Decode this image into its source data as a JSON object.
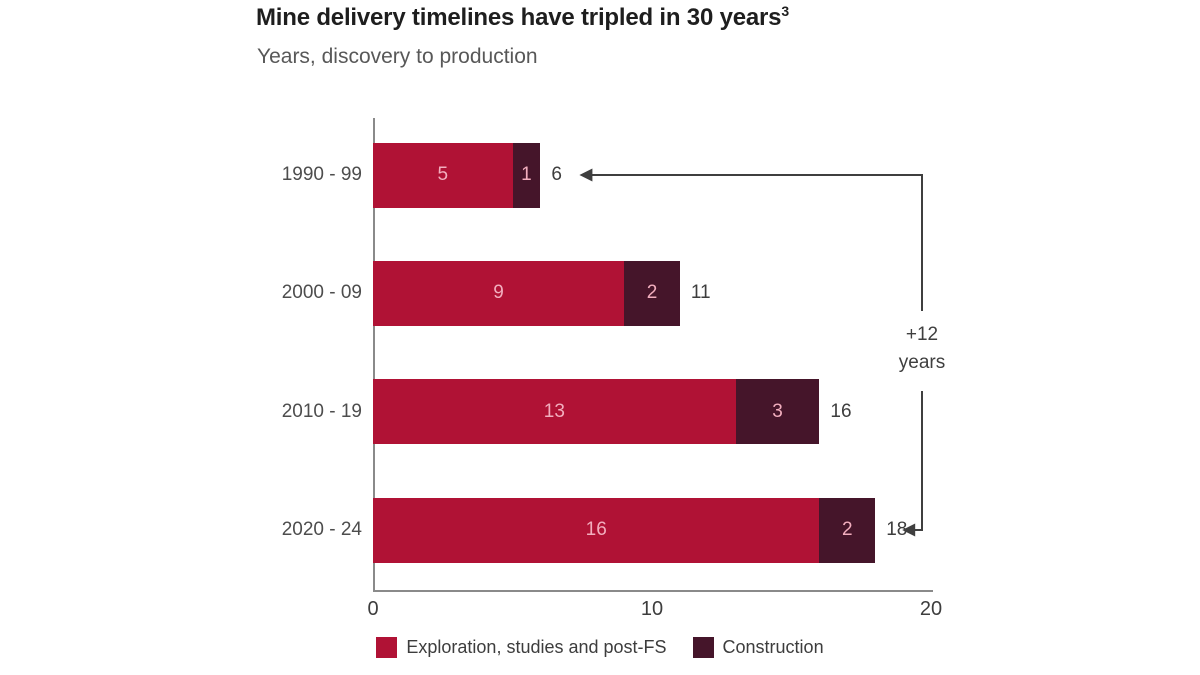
{
  "page": {
    "title": "Mine delivery timelines have tripled in 30 years",
    "title_superscript": "3",
    "subtitle": "Years, discovery to production"
  },
  "colors": {
    "exploration": "#b01235",
    "construction": "#45152a",
    "bar_value_label": "#f2aebe",
    "annotation": "#3f3f3f",
    "axis": "#8a8a8a"
  },
  "chart_data": {
    "type": "bar",
    "orientation": "horizontal",
    "stacked": true,
    "title": "Mine delivery timelines have tripled in 30 years",
    "subtitle": "Years, discovery to production",
    "categories": [
      "1990 - 99",
      "2000 - 09",
      "2010 - 19",
      "2020 - 24"
    ],
    "series": [
      {
        "name": "Exploration, studies and post-FS",
        "values": [
          5,
          9,
          13,
          16
        ],
        "color": "#b01235"
      },
      {
        "name": "Construction",
        "values": [
          1,
          2,
          3,
          2
        ],
        "color": "#45152a"
      }
    ],
    "totals": [
      6,
      11,
      16,
      18
    ],
    "xlabel": "",
    "ylabel": "",
    "xlim": [
      0,
      20
    ],
    "x_ticks": [
      0,
      10,
      20
    ],
    "grid": false,
    "legend_position": "bottom",
    "annotation": {
      "lines": [
        "+12",
        "years"
      ],
      "from_total": 6,
      "to_total": 18
    }
  }
}
